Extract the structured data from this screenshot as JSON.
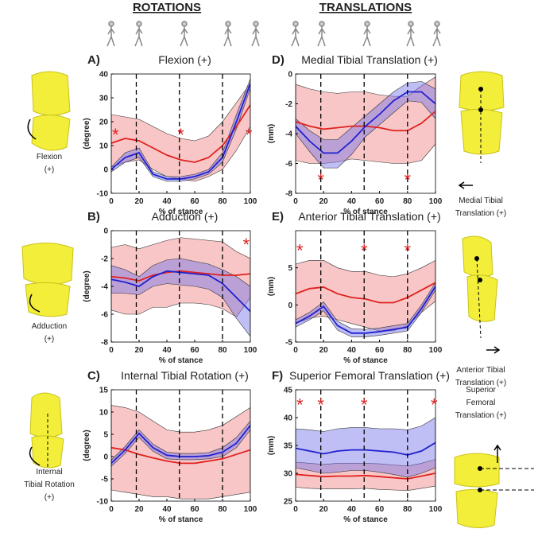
{
  "headers": [
    "ROTATIONS",
    "TRANSLATIONS"
  ],
  "side_labels": [
    [
      "Flexion",
      "(+)"
    ],
    [
      "Adduction",
      "(+)"
    ],
    [
      "Internal",
      "Tibial Rotation",
      "(+)"
    ],
    [
      "Medial Tibial",
      "Translation (+)"
    ],
    [
      "Anterior Tibial",
      "Translation (+)"
    ],
    [
      "Superior",
      "Femoral",
      "Translation (+)"
    ]
  ],
  "chart_data": [
    {
      "type": "line",
      "label": "A)",
      "title": "Flexion (+)",
      "ylabel": "(degree)",
      "xlabel": "% of stance",
      "x": [
        0,
        10,
        20,
        30,
        40,
        50,
        60,
        70,
        80,
        90,
        100
      ],
      "xlim": [
        0,
        100
      ],
      "xticks": [
        0,
        20,
        40,
        60,
        80,
        100
      ],
      "ylim": [
        -10,
        40
      ],
      "yticks": [
        -10,
        0,
        10,
        20,
        30,
        40
      ],
      "events_x": [
        18,
        49,
        80
      ],
      "series": [
        {
          "color": "#e02020",
          "band_color": "#f08080",
          "values": [
            11,
            13,
            12,
            9,
            6,
            4,
            3,
            5,
            10,
            18,
            27
          ],
          "upper": [
            23,
            22,
            21,
            18,
            15,
            13,
            12,
            14,
            20,
            28,
            36
          ],
          "lower": [
            1,
            3,
            4,
            0,
            -3,
            -4,
            -5,
            -3,
            0,
            8,
            18
          ]
        },
        {
          "color": "#2020d0",
          "band_color": "#7070e8",
          "values": [
            0,
            5,
            7,
            -2,
            -4,
            -4,
            -3,
            -1,
            5,
            20,
            36
          ],
          "upper": [
            1,
            7,
            9,
            -1,
            -3,
            -3,
            -2,
            0,
            7,
            23,
            38
          ],
          "lower": [
            -1,
            3,
            5,
            -3,
            -5,
            -5,
            -4,
            -2,
            3,
            17,
            34
          ]
        }
      ],
      "annotations": [
        {
          "text": "*",
          "x": 3,
          "y": 15
        },
        {
          "text": "*",
          "x": 50,
          "y": 15
        },
        {
          "text": "*",
          "x": 99,
          "y": 15
        }
      ]
    },
    {
      "type": "line",
      "label": "B)",
      "title": "Adduction (+)",
      "ylabel": "(degree)",
      "xlabel": "% of stance",
      "x": [
        0,
        10,
        20,
        30,
        40,
        50,
        60,
        70,
        80,
        90,
        100
      ],
      "xlim": [
        0,
        100
      ],
      "xticks": [
        0,
        20,
        40,
        60,
        80,
        100
      ],
      "ylim": [
        -8,
        0
      ],
      "yticks": [
        -8,
        -6,
        -4,
        -2,
        0
      ],
      "events_x": [
        18,
        49,
        80
      ],
      "series": [
        {
          "color": "#e02020",
          "band_color": "#f08080",
          "values": [
            -3.3,
            -3.4,
            -3.6,
            -3.2,
            -3.0,
            -2.9,
            -3.0,
            -3.1,
            -3.2,
            -3.2,
            -3.1
          ],
          "upper": [
            -1.2,
            -1.0,
            -1.3,
            -1.0,
            -0.7,
            -0.5,
            -0.6,
            -0.7,
            -0.8,
            -1.5,
            -2.0
          ],
          "lower": [
            -5.7,
            -6.0,
            -6.0,
            -5.5,
            -5.5,
            -5.2,
            -5.2,
            -5.3,
            -5.6,
            -6.2,
            -4.8
          ]
        },
        {
          "color": "#2020d0",
          "band_color": "#7070e8",
          "values": [
            -3.5,
            -3.7,
            -4.0,
            -3.3,
            -2.9,
            -3.0,
            -3.1,
            -3.2,
            -3.8,
            -4.8,
            -5.8
          ],
          "upper": [
            -2.5,
            -2.8,
            -3.3,
            -2.5,
            -2.1,
            -2.0,
            -2.2,
            -2.4,
            -2.8,
            -3.3,
            -4.0
          ],
          "lower": [
            -4.5,
            -4.5,
            -4.6,
            -4.0,
            -3.8,
            -3.9,
            -4.0,
            -4.2,
            -4.8,
            -6.3,
            -7.6
          ]
        }
      ],
      "annotations": [
        {
          "text": "*",
          "x": 97,
          "y": -0.9
        }
      ]
    },
    {
      "type": "line",
      "label": "C)",
      "title": "Internal Tibial Rotation (+)",
      "ylabel": "(degree)",
      "xlabel": "% of stance",
      "x": [
        0,
        10,
        20,
        30,
        40,
        50,
        60,
        70,
        80,
        90,
        100
      ],
      "xlim": [
        0,
        100
      ],
      "xticks": [
        0,
        20,
        40,
        60,
        80,
        100
      ],
      "ylim": [
        -10,
        15
      ],
      "yticks": [
        -10,
        -5,
        0,
        5,
        10,
        15
      ],
      "events_x": [
        18,
        49,
        80
      ],
      "series": [
        {
          "color": "#e02020",
          "band_color": "#f08080",
          "values": [
            2,
            1.5,
            0.5,
            -0.3,
            -1,
            -1.5,
            -1.5,
            -1,
            -0.5,
            0.5,
            1.5
          ],
          "upper": [
            11.5,
            11,
            10,
            8,
            6,
            5.5,
            5.5,
            6,
            7,
            9,
            11
          ],
          "lower": [
            -7.5,
            -8,
            -8.5,
            -9,
            -9,
            -9.5,
            -9.5,
            -9.5,
            -9,
            -8.5,
            -8
          ]
        },
        {
          "color": "#2020d0",
          "band_color": "#7070e8",
          "values": [
            -1.5,
            1.5,
            5.2,
            2,
            0.3,
            0,
            0,
            0.2,
            1,
            3,
            7
          ],
          "upper": [
            -0.8,
            2.3,
            6,
            2.8,
            1,
            0.7,
            0.7,
            0.9,
            2,
            4.3,
            8
          ],
          "lower": [
            -2.2,
            0.7,
            4.3,
            1.2,
            -0.5,
            -0.7,
            -0.7,
            -0.5,
            0,
            2,
            6
          ]
        }
      ],
      "annotations": []
    },
    {
      "type": "line",
      "label": "D)",
      "title": "Medial Tibial Translation (+)",
      "ylabel": "(mm)",
      "xlabel": "% of stance",
      "x": [
        0,
        10,
        20,
        30,
        40,
        50,
        60,
        70,
        80,
        90,
        100
      ],
      "xlim": [
        0,
        100
      ],
      "xticks": [
        0,
        20,
        40,
        60,
        80,
        100
      ],
      "ylim": [
        -8,
        0
      ],
      "yticks": [
        -8,
        -6,
        -4,
        -2,
        0
      ],
      "events_x": [
        18,
        49,
        80
      ],
      "series": [
        {
          "color": "#e02020",
          "band_color": "#f08080",
          "values": [
            -3.2,
            -3.5,
            -3.7,
            -3.6,
            -3.5,
            -3.5,
            -3.6,
            -3.8,
            -3.8,
            -3.3,
            -2.5
          ],
          "upper": [
            -0.7,
            -1,
            -1.2,
            -1.3,
            -1.2,
            -1.2,
            -1.4,
            -1.5,
            -1.5,
            -0.8,
            -0.2
          ],
          "lower": [
            -5.8,
            -6.0,
            -6.0,
            -5.9,
            -5.7,
            -5.8,
            -5.9,
            -6.0,
            -6.0,
            -5.8,
            -4.7
          ]
        },
        {
          "color": "#2020d0",
          "band_color": "#7070e8",
          "values": [
            -3.5,
            -4.5,
            -5.3,
            -5.3,
            -4.5,
            -3.5,
            -2.7,
            -1.8,
            -1.2,
            -1.2,
            -2.0
          ],
          "upper": [
            -3,
            -3.8,
            -4.4,
            -4.4,
            -3.6,
            -2.8,
            -2,
            -1.2,
            -0.6,
            -0.5,
            -1
          ],
          "lower": [
            -4,
            -5.2,
            -6.3,
            -6.3,
            -5.4,
            -4.2,
            -3.4,
            -2.6,
            -1.8,
            -1.9,
            -3
          ]
        }
      ],
      "annotations": [
        {
          "text": "*",
          "x": 18,
          "y": -7
        },
        {
          "text": "*",
          "x": 80,
          "y": -7
        }
      ]
    },
    {
      "type": "line",
      "label": "E)",
      "title": "Anterior Tibial Translation (+)",
      "ylabel": "(mm)",
      "xlabel": "% of stance",
      "x": [
        0,
        10,
        20,
        30,
        40,
        50,
        60,
        70,
        80,
        90,
        100
      ],
      "xlim": [
        0,
        100
      ],
      "xticks": [
        0,
        20,
        40,
        60,
        80,
        100
      ],
      "ylim": [
        -5,
        10
      ],
      "yticks": [
        -5,
        0,
        5
      ],
      "events_x": [
        18,
        49,
        80
      ],
      "series": [
        {
          "color": "#e02020",
          "band_color": "#f08080",
          "values": [
            1.5,
            2.2,
            2.4,
            1.5,
            1,
            0.8,
            0.3,
            0.3,
            1,
            2,
            3
          ],
          "upper": [
            5.5,
            6,
            6,
            5,
            4.5,
            4.5,
            4,
            3.8,
            4.2,
            5,
            6
          ],
          "lower": [
            -2.5,
            -1.8,
            -1.5,
            -2,
            -2.5,
            -3,
            -3.5,
            -3.5,
            -2.8,
            -1,
            0.5
          ]
        },
        {
          "color": "#2020d0",
          "band_color": "#7070e8",
          "values": [
            -2.5,
            -1.5,
            -0.2,
            -2.8,
            -3.8,
            -3.8,
            -3.6,
            -3.3,
            -3.0,
            -0.5,
            2.5
          ],
          "upper": [
            -2,
            -1,
            0.4,
            -2.2,
            -3.2,
            -3.3,
            -3.1,
            -2.8,
            -2.5,
            0,
            3
          ],
          "lower": [
            -3,
            -2,
            -0.8,
            -3.4,
            -4.3,
            -4.3,
            -4.1,
            -3.8,
            -3.5,
            -1,
            2
          ]
        }
      ],
      "annotations": [
        {
          "text": "*",
          "x": 3,
          "y": 7.5
        },
        {
          "text": "*",
          "x": 49,
          "y": 7.5
        },
        {
          "text": "*",
          "x": 80,
          "y": 7.5
        }
      ]
    },
    {
      "type": "line",
      "label": "F)",
      "title": "Superior Femoral Translation (+)",
      "ylabel": "(mm)",
      "xlabel": "% of stance",
      "x": [
        0,
        10,
        20,
        30,
        40,
        50,
        60,
        70,
        80,
        90,
        100
      ],
      "xlim": [
        0,
        100
      ],
      "xticks": [
        0,
        20,
        40,
        60,
        80,
        100
      ],
      "ylim": [
        25,
        45
      ],
      "yticks": [
        25,
        30,
        35,
        40,
        45
      ],
      "events_x": [
        18,
        49,
        80
      ],
      "series": [
        {
          "color": "#e02020",
          "band_color": "#f08080",
          "values": [
            29.8,
            29.6,
            29.4,
            29.5,
            29.5,
            29.6,
            29.4,
            29.2,
            29,
            29.5,
            30
          ],
          "upper": [
            32,
            31.8,
            31.6,
            31.8,
            31.8,
            31.8,
            31.7,
            31.5,
            31.3,
            31.8,
            32.5
          ],
          "lower": [
            27.5,
            27.3,
            27.2,
            27.2,
            27.2,
            27.3,
            27.1,
            27,
            26.9,
            27.3,
            27.7
          ]
        },
        {
          "color": "#2020d0",
          "band_color": "#7070e8",
          "values": [
            34.5,
            34,
            33.5,
            34,
            34.2,
            34.2,
            34,
            33.8,
            33.3,
            34,
            35.5
          ],
          "upper": [
            38,
            37.8,
            37.5,
            38,
            38.2,
            38.2,
            38,
            38,
            37.8,
            38.5,
            40
          ],
          "lower": [
            31,
            30.5,
            30,
            30.2,
            30.5,
            30.5,
            30.2,
            29.8,
            29.3,
            30,
            31
          ]
        }
      ],
      "annotations": [
        {
          "text": "*",
          "x": 3,
          "y": 42.5
        },
        {
          "text": "*",
          "x": 18,
          "y": 42.5
        },
        {
          "text": "*",
          "x": 49,
          "y": 42.5
        },
        {
          "text": "*",
          "x": 99,
          "y": 42.5
        }
      ]
    }
  ]
}
